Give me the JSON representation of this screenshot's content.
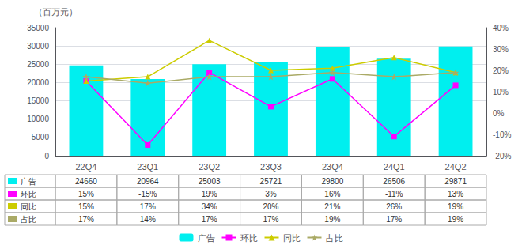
{
  "chart_data": {
    "type": "bar",
    "ylabel": "（百万元）",
    "categories": [
      "22Q4",
      "23Q1",
      "23Q2",
      "23Q3",
      "23Q4",
      "24Q1",
      "24Q2"
    ],
    "series": [
      {
        "name": "广告",
        "type": "bar",
        "color": "#00EFEF",
        "values": [
          24660,
          20964,
          25003,
          25721,
          29800,
          26506,
          29871
        ]
      },
      {
        "name": "环比",
        "type": "line",
        "axis": "y2",
        "color": "#FF00FF",
        "marker": "square",
        "values": [
          15,
          -15,
          19,
          3,
          16,
          -11,
          13
        ],
        "value_labels": [
          "15%",
          "-15%",
          "19%",
          "3%",
          "16%",
          "-11%",
          "13%"
        ]
      },
      {
        "name": "同比",
        "type": "line",
        "axis": "y2",
        "color": "#CCCC00",
        "marker": "triangle",
        "values": [
          15,
          17,
          34,
          20,
          21,
          26,
          19
        ],
        "value_labels": [
          "15%",
          "17%",
          "34%",
          "20%",
          "21%",
          "26%",
          "19%"
        ]
      },
      {
        "name": "占比",
        "type": "line",
        "axis": "y2",
        "color": "#AAAA66",
        "marker": "star",
        "values": [
          17,
          14,
          17,
          17,
          19,
          17,
          19
        ],
        "value_labels": [
          "17%",
          "14%",
          "17%",
          "17%",
          "19%",
          "17%",
          "19%"
        ]
      }
    ],
    "ylim": [
      0,
      35000
    ],
    "yticks": [
      0,
      5000,
      10000,
      15000,
      20000,
      25000,
      30000,
      35000
    ],
    "y2lim": [
      -20,
      40
    ],
    "y2ticks": [
      {
        "value": -20,
        "label": "-20%"
      },
      {
        "value": -10,
        "label": "-10%"
      },
      {
        "value": 0,
        "label": "0%"
      },
      {
        "value": 10,
        "label": "10%"
      },
      {
        "value": 20,
        "label": "20%"
      },
      {
        "value": 30,
        "label": "30%"
      },
      {
        "value": 40,
        "label": "40%"
      }
    ],
    "grid": true,
    "legend": "bottom"
  }
}
